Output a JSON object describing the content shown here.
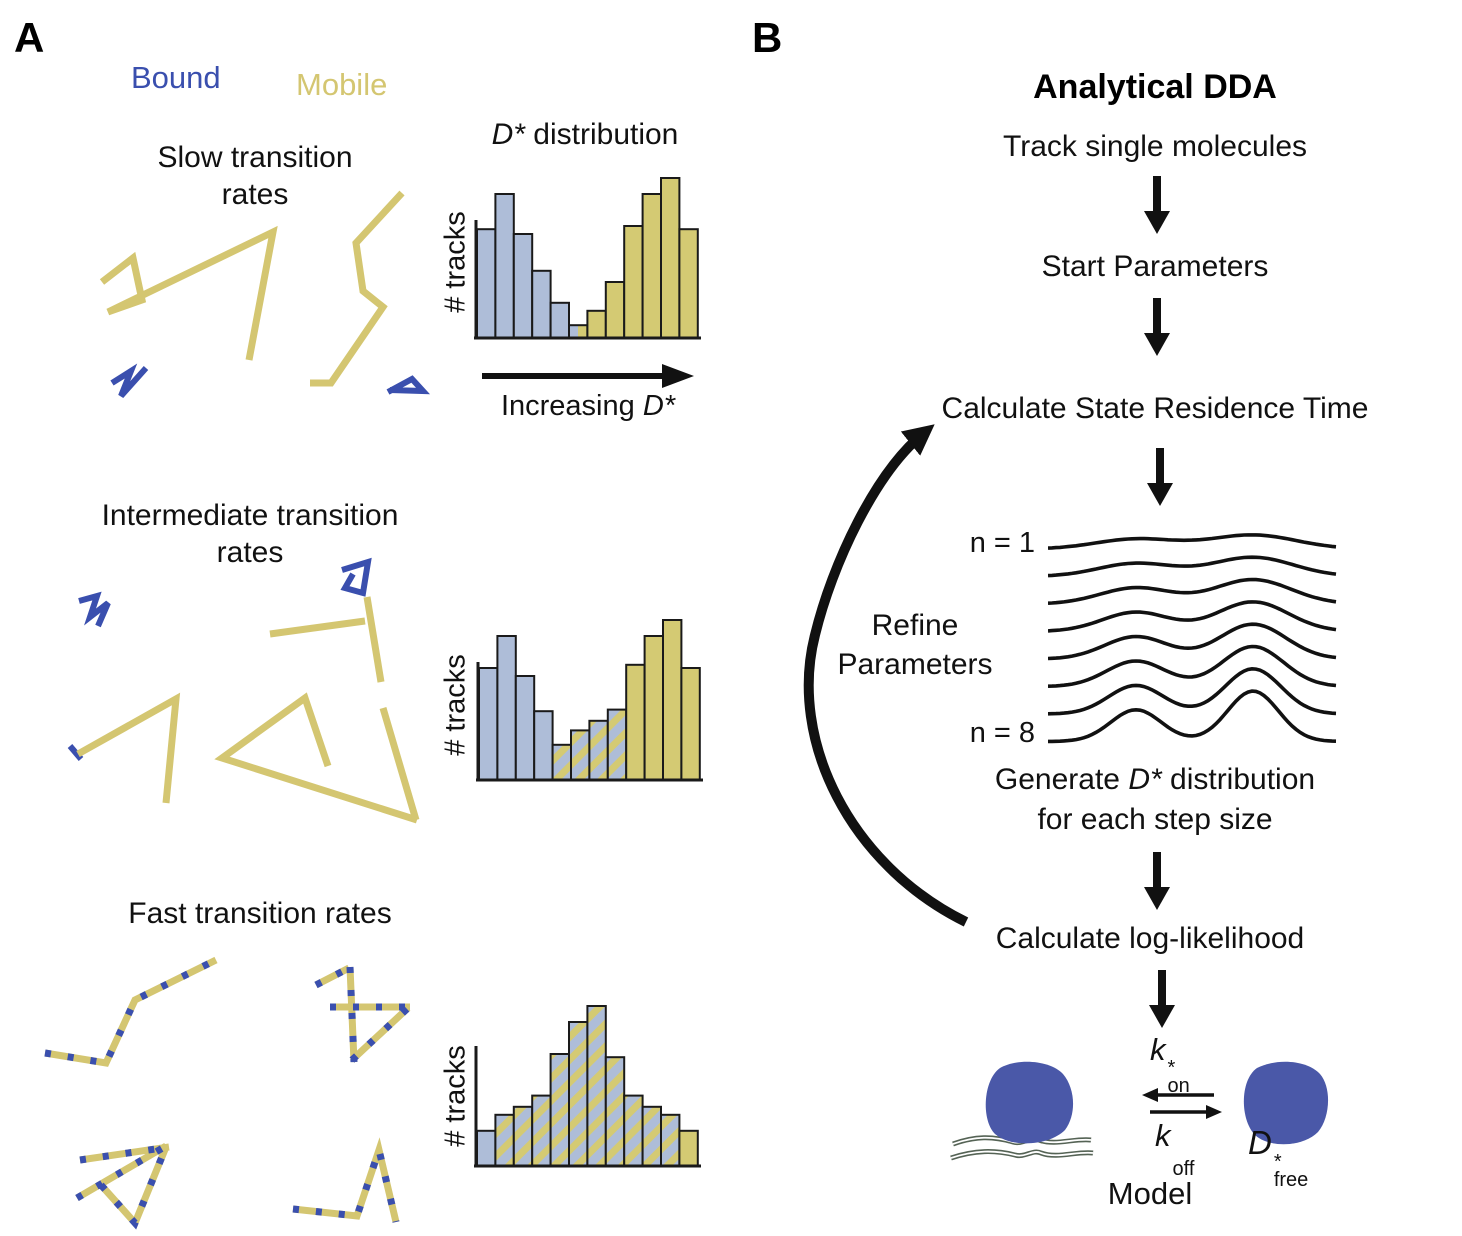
{
  "panel_a": {
    "label": "A",
    "legend": {
      "bound": "Bound",
      "mobile": "Mobile"
    },
    "sections": [
      {
        "title": "Slow transition rates"
      },
      {
        "title": "Intermediate transition rates"
      },
      {
        "title": "Fast transition rates"
      }
    ],
    "hist_title": {
      "dstar": "D*",
      "rest": " distribution"
    },
    "ylabel": "# tracks",
    "xarrow": {
      "pre": "Increasing ",
      "dstar": "D*"
    },
    "histograms": [
      {
        "name": "slow",
        "values": [
          68,
          90,
          65,
          42,
          22,
          8,
          17,
          35,
          70,
          90,
          100,
          68
        ],
        "fills": [
          "blue",
          "blue",
          "blue",
          "blue",
          "blue",
          "split",
          "yellow",
          "yellow",
          "yellow",
          "yellow",
          "yellow",
          "yellow"
        ]
      },
      {
        "name": "intermediate",
        "values": [
          70,
          90,
          65,
          43,
          22,
          31,
          37,
          44,
          72,
          90,
          100,
          70
        ],
        "fills": [
          "blue",
          "blue",
          "blue",
          "blue",
          "striped",
          "striped",
          "striped",
          "striped",
          "yellow",
          "yellow",
          "yellow",
          "yellow"
        ]
      },
      {
        "name": "fast",
        "values": [
          22,
          32,
          37,
          44,
          70,
          90,
          100,
          68,
          44,
          37,
          32,
          22
        ],
        "fills": [
          "blue",
          "striped",
          "striped",
          "striped",
          "striped",
          "striped",
          "striped",
          "striped",
          "striped",
          "striped",
          "striped",
          "yellow"
        ]
      }
    ],
    "colors": {
      "bound": "#3a4fae",
      "mobile": "#d4c671",
      "hist_blue": "#aebdd8",
      "hist_yellow": "#d4ca73"
    }
  },
  "panel_b": {
    "label": "B",
    "title": "Analytical DDA",
    "steps": [
      "Track single molecules",
      "Start Parameters",
      "Calculate State Residence Time"
    ],
    "curve_labels": {
      "first": "n = 1",
      "last": "n = 8"
    },
    "refine": "Refine Parameters",
    "generate": {
      "pre": "Generate ",
      "dstar": "D*",
      "post": " distribution",
      "line2": "for each step size"
    },
    "loglik": "Calculate log-likelihood",
    "kon": {
      "base": "k",
      "sup": "*",
      "sub": "on"
    },
    "koff": {
      "base": "k",
      "sub": "off"
    },
    "dfree": {
      "base": "D",
      "sup": "*",
      "sub": "free"
    },
    "model_label": "Model",
    "blob_color": "#4a58a8"
  }
}
